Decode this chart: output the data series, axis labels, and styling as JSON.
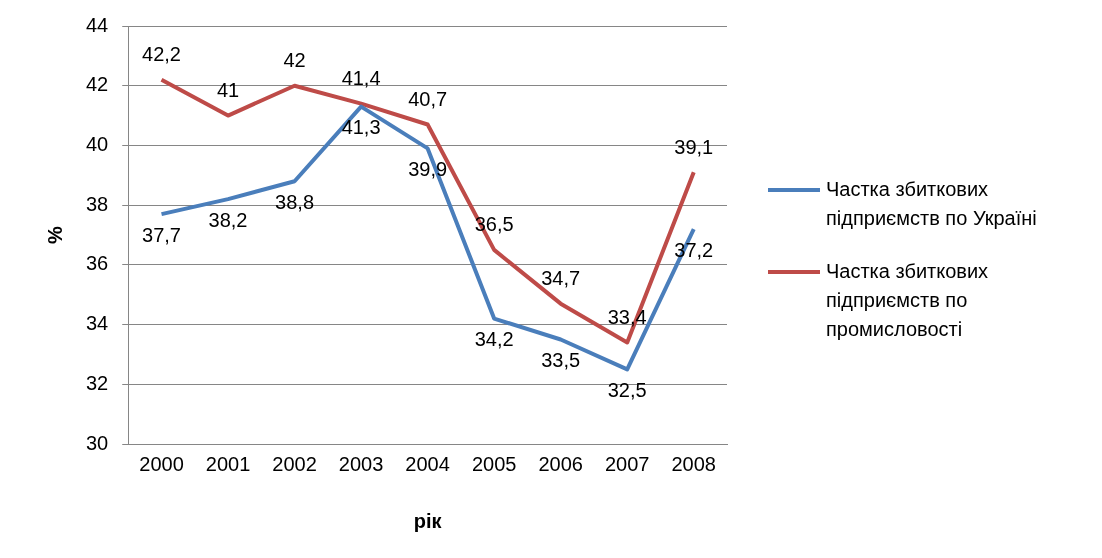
{
  "chart_data": {
    "type": "line",
    "xlabel": "рік",
    "ylabel": "%",
    "categories": [
      "2000",
      "2001",
      "2002",
      "2003",
      "2004",
      "2005",
      "2006",
      "2007",
      "2008"
    ],
    "series": [
      {
        "name": "Частка збиткових підприємств по Україні",
        "color": "#4a7ebb",
        "values": [
          37.7,
          38.2,
          38.8,
          41.3,
          39.9,
          34.2,
          33.5,
          32.5,
          37.2
        ],
        "value_labels": [
          "37,7",
          "38,2",
          "38,8",
          "41,3",
          "39,9",
          "34,2",
          "33,5",
          "32,5",
          "37,2"
        ]
      },
      {
        "name": "Частка збиткових підприємств по промисловості",
        "color": "#be4b48",
        "values": [
          42.2,
          41,
          42,
          41.4,
          40.7,
          36.5,
          34.7,
          33.4,
          39.1
        ],
        "value_labels": [
          "42,2",
          "41",
          "42",
          "41,4",
          "40,7",
          "36,5",
          "34,7",
          "33,4",
          "39,1"
        ]
      }
    ],
    "ylim": [
      30,
      44
    ],
    "yticks": [
      30,
      32,
      34,
      36,
      38,
      40,
      42,
      44
    ],
    "grid": "y",
    "legend": "right",
    "marker": "none",
    "line_style": "solid"
  }
}
